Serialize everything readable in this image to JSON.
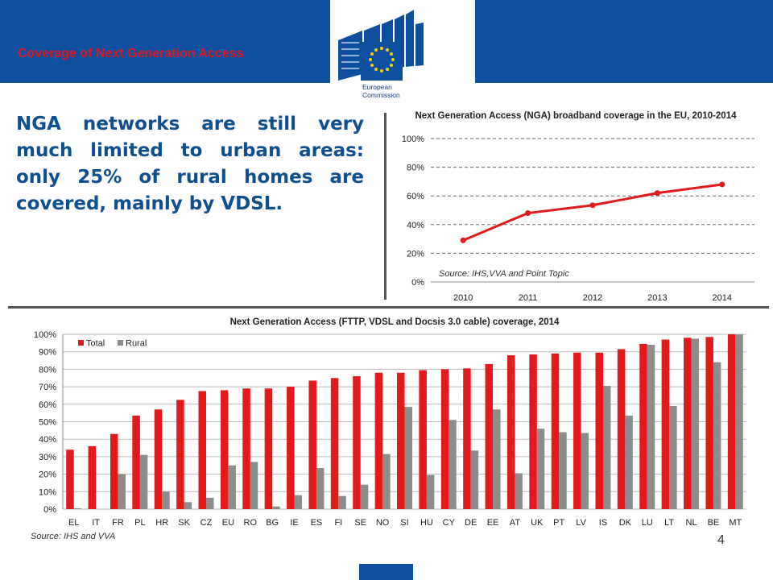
{
  "header": {
    "title": "Coverage of Next Generation Access"
  },
  "logo": {
    "line1": "European",
    "line2": "Commission"
  },
  "headline": "NGA networks are still very much limited to urban areas: only 25% of rural homes are covered, mainly by VDSL.",
  "page_number": "4",
  "colors": {
    "brand_blue": "#0e4fa0",
    "total_red": "#e31a1c",
    "rural_grey": "#8c8c8c",
    "headline_blue": "#0e4f8f"
  },
  "chart_data": [
    {
      "type": "line",
      "title": "Next Generation Access (NGA) broadband coverage in the EU, 2010-2014",
      "source": "Source: IHS,VVA and Point Topic",
      "x": [
        "2010",
        "2011",
        "2012",
        "2013",
        "2014"
      ],
      "series": [
        {
          "values": [
            0.29,
            0.48,
            0.535,
            0.62,
            0.68
          ]
        }
      ],
      "ylim": [
        0,
        1
      ],
      "yticks": [
        "0%",
        "20%",
        "40%",
        "60%",
        "80%",
        "100%"
      ],
      "grid": true
    },
    {
      "type": "bar",
      "title": "Next Generation Access (FTTP, VDSL and Docsis 3.0 cable) coverage, 2014",
      "source": "Source: IHS and VVA",
      "categories": [
        "EL",
        "IT",
        "FR",
        "PL",
        "HR",
        "SK",
        "CZ",
        "EU",
        "RO",
        "BG",
        "IE",
        "ES",
        "FI",
        "SE",
        "NO",
        "SI",
        "HU",
        "CY",
        "DE",
        "EE",
        "AT",
        "UK",
        "PT",
        "LV",
        "IS",
        "DK",
        "LU",
        "LT",
        "NL",
        "BE",
        "MT"
      ],
      "series": [
        {
          "name": "Total",
          "values": [
            0.34,
            0.36,
            0.43,
            0.535,
            0.57,
            0.625,
            0.675,
            0.68,
            0.69,
            0.69,
            0.7,
            0.735,
            0.75,
            0.76,
            0.78,
            0.78,
            0.795,
            0.8,
            0.805,
            0.83,
            0.88,
            0.885,
            0.89,
            0.895,
            0.895,
            0.915,
            0.945,
            0.97,
            0.98,
            0.985,
            1.0
          ]
        },
        {
          "name": "Rural",
          "values": [
            0.005,
            0.0,
            0.2,
            0.31,
            0.1,
            0.04,
            0.065,
            0.25,
            0.27,
            0.015,
            0.08,
            0.235,
            0.075,
            0.14,
            0.315,
            0.585,
            0.195,
            0.51,
            0.335,
            0.57,
            0.205,
            0.46,
            0.44,
            0.435,
            0.705,
            0.535,
            0.94,
            0.59,
            0.975,
            0.84,
            1.0
          ]
        }
      ],
      "ylim": [
        0,
        1
      ],
      "yticks": [
        "0%",
        "10%",
        "20%",
        "30%",
        "40%",
        "50%",
        "60%",
        "70%",
        "80%",
        "90%",
        "100%"
      ],
      "legend": "top-left",
      "grid": true
    }
  ]
}
